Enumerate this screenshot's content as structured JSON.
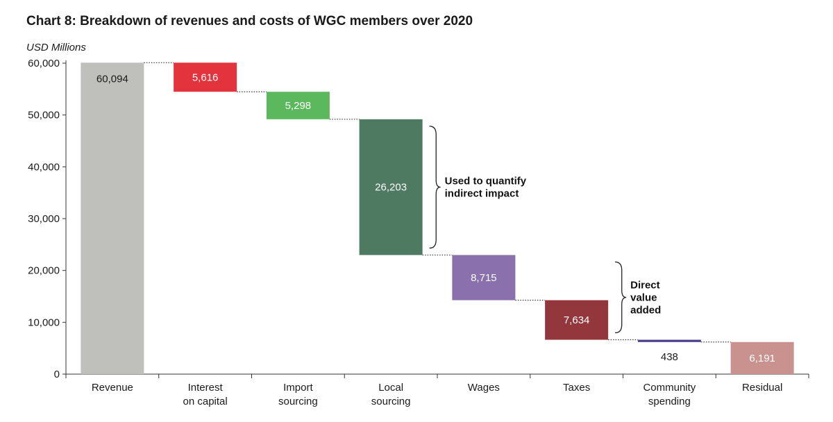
{
  "title": "Chart 8: Breakdown of revenues and costs of WGC members over 2020",
  "unit_label": "USD Millions",
  "chart_data": {
    "type": "bar",
    "subtype": "waterfall",
    "categories": [
      [
        "Revenue"
      ],
      [
        "Interest",
        "on capital"
      ],
      [
        "Import",
        "sourcing"
      ],
      [
        "Local",
        "sourcing"
      ],
      [
        "Wages"
      ],
      [
        "Taxes"
      ],
      [
        "Community",
        "spending"
      ],
      [
        "Residual"
      ]
    ],
    "values": [
      60094,
      5616,
      5298,
      26203,
      8715,
      7634,
      438,
      6191
    ],
    "value_labels": [
      "60,094",
      "5,616",
      "5,298",
      "26,203",
      "8,715",
      "7,634",
      "438",
      "6,191"
    ],
    "colors": [
      "#bfbfbb",
      "#e3343d",
      "#5cb85c",
      "#4f7a62",
      "#8a70ad",
      "#93373d",
      "#4a3f8c",
      "#c9928f"
    ],
    "value_label_colors": [
      "#1a1a1a",
      "#ffffff",
      "#ffffff",
      "#ffffff",
      "#ffffff",
      "#ffffff",
      "#1a1a1a",
      "#ffffff"
    ],
    "ylim": [
      0,
      60000
    ],
    "y_ticks": [
      0,
      10000,
      20000,
      30000,
      40000,
      50000,
      60000
    ],
    "y_tick_labels": [
      "0",
      "10,000",
      "20,000",
      "30,000",
      "40,000",
      "50,000",
      "60,000"
    ],
    "grid": false,
    "annotations": [
      {
        "lines": [
          "Used to quantify",
          "indirect impact"
        ],
        "from_category": 3,
        "to_category": 3
      },
      {
        "lines": [
          "Direct",
          "value",
          "added"
        ],
        "from_category": 4,
        "to_category": 5
      }
    ]
  }
}
